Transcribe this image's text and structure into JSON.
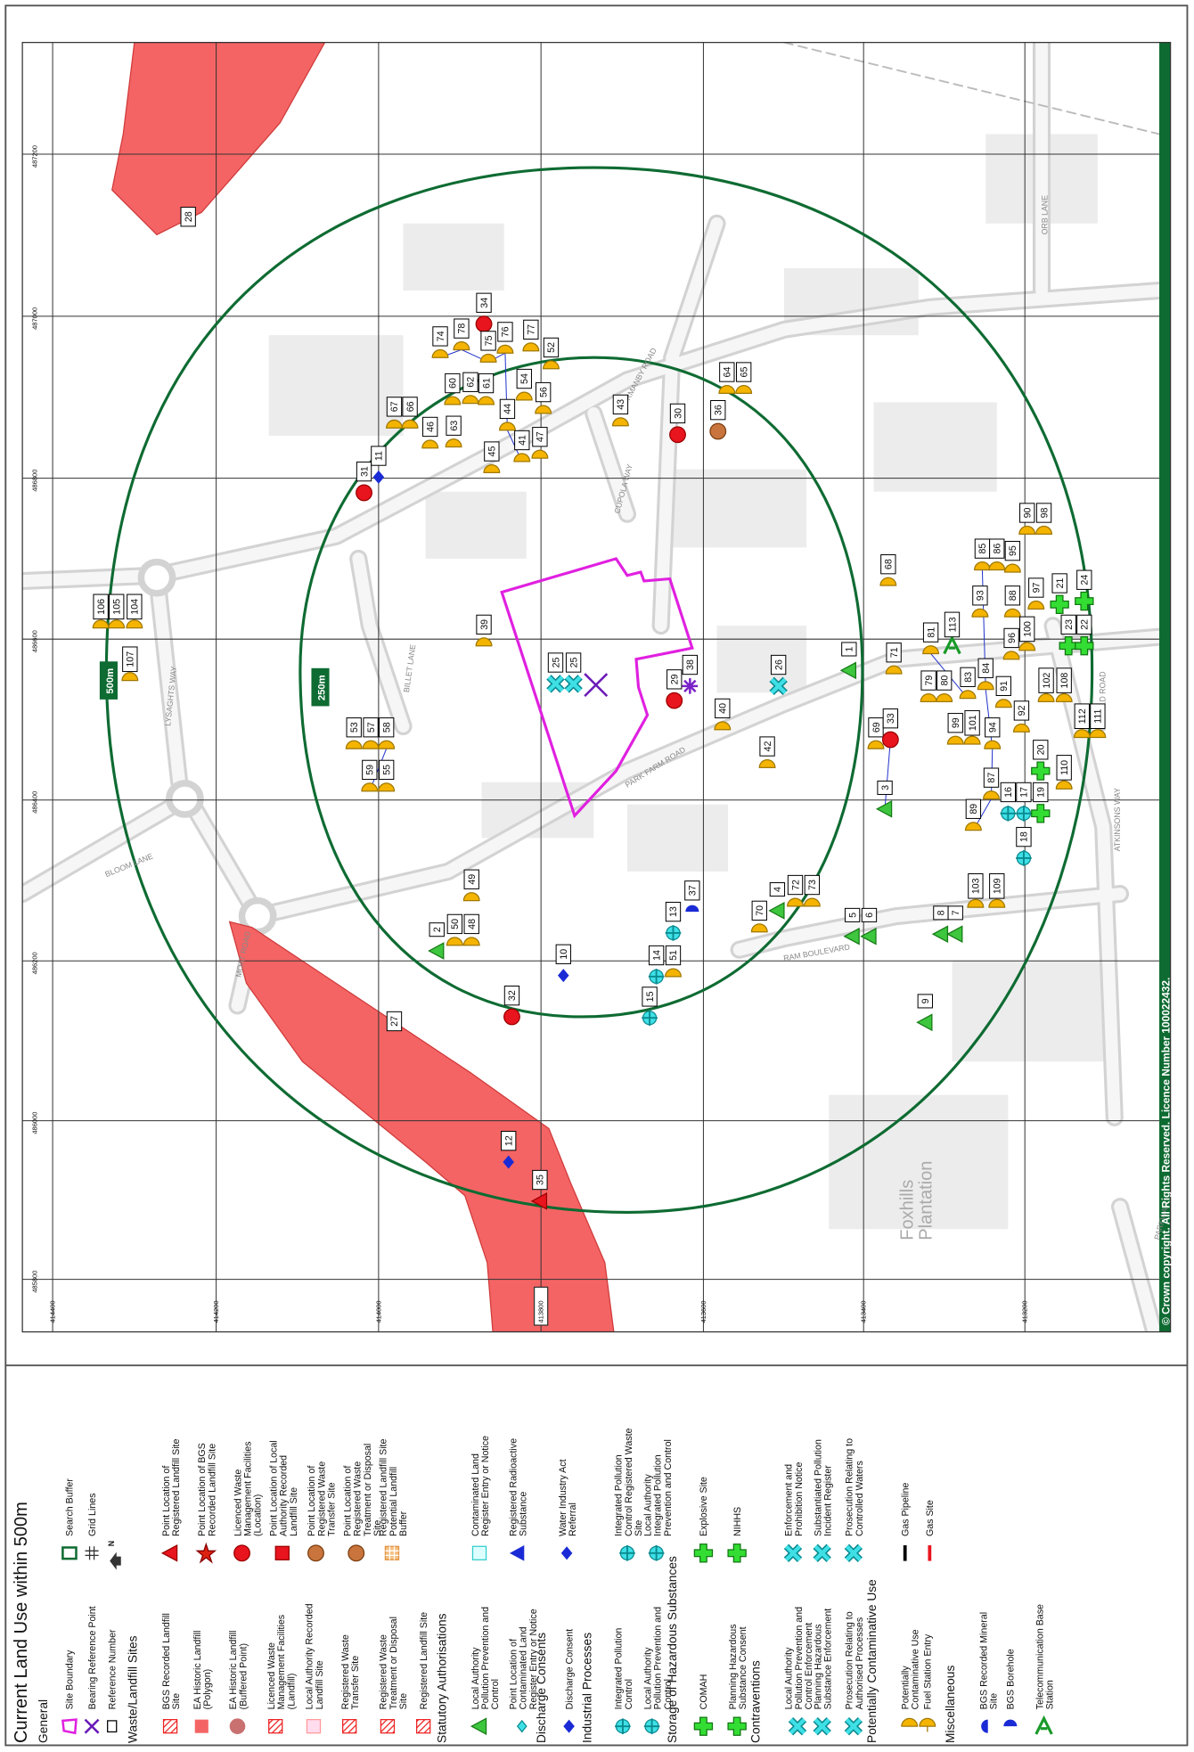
{
  "title": "Current  Land Use within 500m",
  "legend": {
    "north": "N",
    "sections": [
      {
        "heading": "General",
        "items": [
          "Site Boundary",
          "Bearing Reference Point",
          "Reference Number",
          "Search Buffer",
          "Grid Lines"
        ]
      },
      {
        "heading": "Waste/Landfill Sites",
        "items": [
          "BGS Recorded Landfill Site",
          "EA Historic Landfill (Polygon)",
          "EA Historic Landfill (Buffered Point)",
          "Licenced Waste Management Facilities (Landfill)",
          "Local Authority Recorded Landfill Site",
          "Registered Waste Transfer Site",
          "Registered Waste Treatment or Disposal Site",
          "Registered Landfill Site",
          "Point Location of Registered Landfill Site",
          "Point Location of BGS Recorded Landfill Site",
          "Licenced Waste Management Facilities (Location)",
          "Point Location of Local Authority Recorded Landfill Site",
          "Point Location of Registered Waste Transfer Site",
          "Point Location of Registered Waste Treatment or Disposal Site",
          "Registered Landfill Site Potential Landfill Buffer"
        ]
      },
      {
        "heading": "Statutory Authorisations",
        "items": [
          "Local Authority Pollution Prevention and Control",
          "Point Location of Contaminated Land Register Entry or Notice",
          "Contaminated Land Register Entry or Notice",
          "Registered Radioactive Substance"
        ]
      },
      {
        "heading": "Discharge Consents",
        "items": [
          "Discharge Consent",
          "Water Industry Act Referral"
        ]
      },
      {
        "heading": "Industrial Processes",
        "items": [
          "Integrated Pollution Control",
          "Local Authority Pollution Prevention and Control",
          "Integrated Pollution Control Registered Waste Site",
          "Local Authority Integrated Pollution Prevention and Control"
        ]
      },
      {
        "heading": "Storage of Hazardous Substances",
        "items": [
          "COMAH",
          "Planning Hazardous Substance Consent",
          "Explosive Site",
          "NIHHS"
        ]
      },
      {
        "heading": "Contraventions",
        "items": [
          "Local Authority Pollution Prevention and Control Enforcement",
          "Planning Hazardous Substance Enforcement",
          "Prosecution Relating to Authorised Processes",
          "Enforcement and Prohibition Notice",
          "Substantiated Pollution Incident Register",
          "Prosecution Relating to Controlled Waters"
        ]
      },
      {
        "heading": "Potentially Contaminative Use",
        "items": [
          "Potentially Contaminative Use",
          "Fuel Station Entry",
          "Gas Pipeline",
          "Gas Site"
        ]
      },
      {
        "heading": "Miscellaneous",
        "items": [
          "BGS Recorded Mineral Site",
          "BGS Borehole",
          "Telecommunication Base Station"
        ]
      }
    ]
  },
  "map": {
    "buffers": [
      "500m",
      "250m"
    ],
    "roads": [
      "NORMANBY ROAD",
      "CUPOLA WAY",
      "BILLET LANE",
      "LYSAGHTS WAY",
      "BLOOM LANE",
      "MOAT ROAD",
      "PARK FARM ROAD",
      "RAM BOULEVARD",
      "ATKINSONS WAY",
      "STAYFIELD ROAD",
      "ORB LANE",
      "PARKWAY"
    ],
    "place": "Foxhills Plantation",
    "copyright": "© Crown copyright. All Rights Reserved. Licence Number 100022432.",
    "northings": [
      "414400",
      "414200",
      "414000",
      "413800",
      "413600",
      "413400",
      "413200"
    ],
    "eastings": [
      "487200",
      "487000",
      "486800",
      "486600",
      "486400",
      "486200",
      "486000",
      "485800"
    ],
    "markers": [
      "106",
      "105",
      "104",
      "107",
      "28",
      "39",
      "34",
      "31",
      "11",
      "74",
      "78",
      "75",
      "76",
      "77",
      "52",
      "60",
      "62",
      "61",
      "54",
      "56",
      "67",
      "66",
      "46",
      "63",
      "44",
      "41",
      "47",
      "45",
      "43",
      "30",
      "36",
      "64",
      "65",
      "53",
      "57",
      "58",
      "59",
      "55",
      "25",
      "25",
      "29",
      "38",
      "40",
      "42",
      "26",
      "1",
      "71",
      "81",
      "113",
      "68",
      "79",
      "80",
      "83",
      "84",
      "99",
      "101",
      "92",
      "94",
      "91",
      "102",
      "108",
      "112",
      "111",
      "69",
      "33",
      "3",
      "93",
      "85",
      "86",
      "95",
      "90",
      "98",
      "88",
      "97",
      "96",
      "100",
      "21",
      "24",
      "23",
      "22",
      "20",
      "16",
      "17",
      "19",
      "18",
      "87",
      "89",
      "110",
      "2",
      "50",
      "48",
      "49",
      "27",
      "32",
      "12",
      "35",
      "10",
      "37",
      "13",
      "14",
      "51",
      "15",
      "70",
      "4",
      "72",
      "73",
      "5",
      "6",
      "8",
      "7",
      "103",
      "109",
      "9"
    ]
  }
}
